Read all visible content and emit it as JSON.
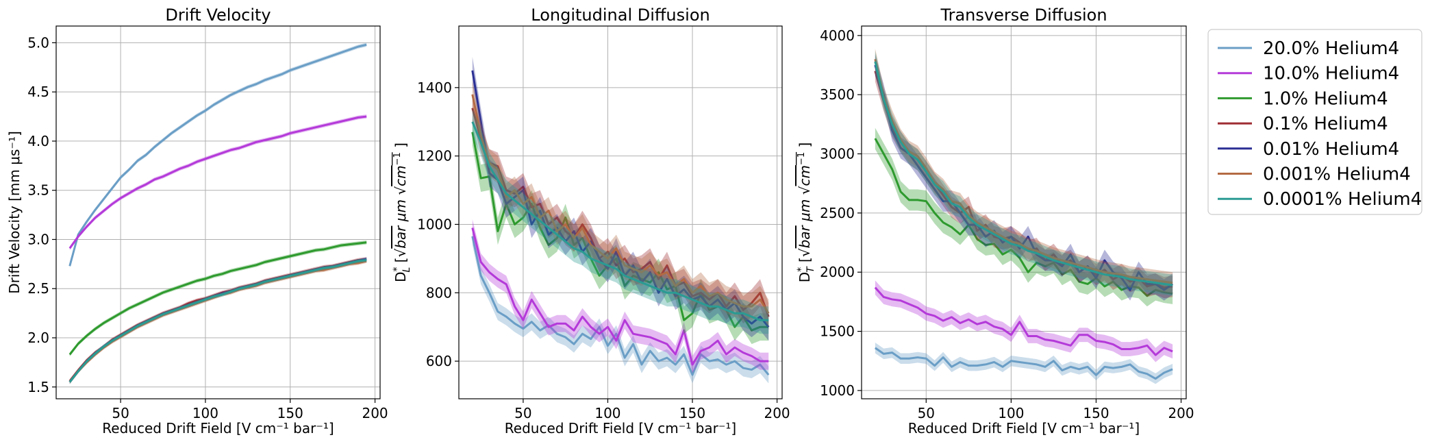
{
  "chart_data": [
    {
      "id": "drift",
      "type": "line",
      "title": "Drift Velocity",
      "xlabel": "Reduced Drift Field [V cm⁻¹ bar⁻¹]",
      "ylabel": "Drift Velocity [mm μs⁻¹]",
      "xlim": [
        12,
        203
      ],
      "ylim": [
        1.38,
        5.17
      ],
      "xticks": [
        50,
        100,
        150,
        200
      ],
      "yticks": [
        1.5,
        2.0,
        2.5,
        3.0,
        3.5,
        4.0,
        4.5,
        5.0
      ],
      "ytick_labels": [
        "1.5",
        "2.0",
        "2.5",
        "3.0",
        "3.5",
        "4.0",
        "4.5",
        "5.0"
      ],
      "grid": true,
      "x": [
        20,
        25,
        30,
        35,
        40,
        45,
        50,
        55,
        60,
        65,
        70,
        75,
        80,
        85,
        90,
        95,
        100,
        105,
        110,
        115,
        120,
        125,
        130,
        135,
        140,
        145,
        150,
        155,
        160,
        165,
        170,
        175,
        180,
        185,
        190,
        195
      ],
      "series": [
        {
          "name": "20.0% Helium4",
          "band": 0.02,
          "values": [
            2.73,
            3.05,
            3.18,
            3.3,
            3.41,
            3.52,
            3.63,
            3.71,
            3.8,
            3.86,
            3.94,
            4.01,
            4.08,
            4.14,
            4.2,
            4.26,
            4.31,
            4.37,
            4.42,
            4.47,
            4.51,
            4.55,
            4.58,
            4.62,
            4.65,
            4.68,
            4.72,
            4.75,
            4.78,
            4.81,
            4.84,
            4.87,
            4.9,
            4.93,
            4.96,
            4.98
          ]
        },
        {
          "name": "10.0% Helium4",
          "band": 0.02,
          "values": [
            2.91,
            3.03,
            3.13,
            3.22,
            3.29,
            3.36,
            3.42,
            3.47,
            3.52,
            3.56,
            3.61,
            3.64,
            3.68,
            3.72,
            3.75,
            3.79,
            3.82,
            3.85,
            3.88,
            3.91,
            3.93,
            3.96,
            3.99,
            4.01,
            4.03,
            4.05,
            4.08,
            4.1,
            4.12,
            4.14,
            4.16,
            4.18,
            4.2,
            4.22,
            4.24,
            4.25
          ]
        },
        {
          "name": "1.0% Helium4",
          "band": 0.02,
          "values": [
            1.83,
            1.94,
            2.02,
            2.09,
            2.15,
            2.2,
            2.25,
            2.3,
            2.34,
            2.38,
            2.42,
            2.46,
            2.49,
            2.52,
            2.55,
            2.58,
            2.6,
            2.63,
            2.65,
            2.68,
            2.7,
            2.72,
            2.74,
            2.77,
            2.79,
            2.81,
            2.83,
            2.85,
            2.87,
            2.89,
            2.9,
            2.92,
            2.94,
            2.95,
            2.96,
            2.97
          ]
        },
        {
          "name": "0.1% Helium4",
          "band": 0.02,
          "values": [
            1.56,
            1.67,
            1.77,
            1.85,
            1.91,
            1.98,
            2.03,
            2.08,
            2.13,
            2.17,
            2.21,
            2.25,
            2.28,
            2.31,
            2.35,
            2.38,
            2.4,
            2.43,
            2.46,
            2.48,
            2.51,
            2.53,
            2.55,
            2.58,
            2.6,
            2.62,
            2.64,
            2.66,
            2.68,
            2.7,
            2.72,
            2.73,
            2.75,
            2.77,
            2.79,
            2.8
          ]
        },
        {
          "name": "0.01% Helium4",
          "band": 0.02,
          "values": [
            1.55,
            1.66,
            1.76,
            1.84,
            1.91,
            1.97,
            2.02,
            2.07,
            2.12,
            2.16,
            2.2,
            2.24,
            2.27,
            2.3,
            2.33,
            2.36,
            2.39,
            2.42,
            2.45,
            2.47,
            2.5,
            2.52,
            2.54,
            2.57,
            2.59,
            2.61,
            2.63,
            2.65,
            2.67,
            2.69,
            2.71,
            2.72,
            2.74,
            2.76,
            2.78,
            2.8
          ]
        },
        {
          "name": "0.001% Helium4",
          "band": 0.02,
          "values": [
            1.55,
            1.66,
            1.75,
            1.83,
            1.9,
            1.96,
            2.01,
            2.06,
            2.11,
            2.15,
            2.19,
            2.23,
            2.26,
            2.29,
            2.32,
            2.35,
            2.38,
            2.41,
            2.44,
            2.46,
            2.49,
            2.51,
            2.53,
            2.56,
            2.58,
            2.6,
            2.62,
            2.64,
            2.66,
            2.68,
            2.69,
            2.71,
            2.73,
            2.75,
            2.76,
            2.78
          ]
        },
        {
          "name": "0.0001% Helium4",
          "band": 0.02,
          "values": [
            1.55,
            1.66,
            1.76,
            1.84,
            1.91,
            1.97,
            2.02,
            2.07,
            2.12,
            2.16,
            2.2,
            2.24,
            2.27,
            2.3,
            2.33,
            2.36,
            2.39,
            2.42,
            2.44,
            2.47,
            2.5,
            2.52,
            2.54,
            2.57,
            2.59,
            2.61,
            2.63,
            2.65,
            2.67,
            2.69,
            2.71,
            2.72,
            2.74,
            2.76,
            2.78,
            2.79
          ]
        }
      ]
    },
    {
      "id": "long",
      "type": "line",
      "title": "Longitudinal Diffusion",
      "xlabel": "Reduced Drift Field [V cm⁻¹ bar⁻¹]",
      "ylabel": "D*L [√bar μm √cm⁻¹]",
      "xlim": [
        12,
        203
      ],
      "ylim": [
        490,
        1580
      ],
      "xticks": [
        50,
        100,
        150,
        200
      ],
      "yticks": [
        600,
        800,
        1000,
        1200,
        1400
      ],
      "ytick_labels": [
        "600",
        "800",
        "1000",
        "1200",
        "1400"
      ],
      "grid": true,
      "x": [
        20,
        25,
        30,
        35,
        40,
        45,
        50,
        55,
        60,
        65,
        70,
        75,
        80,
        85,
        90,
        95,
        100,
        105,
        110,
        115,
        120,
        125,
        130,
        135,
        140,
        145,
        150,
        155,
        160,
        165,
        170,
        175,
        180,
        185,
        190,
        195
      ],
      "series": [
        {
          "name": "20.0% Helium4",
          "band": 25,
          "values": [
            965,
            850,
            800,
            745,
            730,
            710,
            695,
            715,
            690,
            705,
            680,
            670,
            650,
            680,
            665,
            700,
            645,
            680,
            610,
            650,
            590,
            630,
            600,
            610,
            590,
            620,
            560,
            620,
            600,
            605,
            590,
            600,
            580,
            575,
            590,
            560
          ]
        },
        {
          "name": "10.0% Helium4",
          "band": 25,
          "values": [
            990,
            890,
            860,
            840,
            825,
            760,
            720,
            780,
            740,
            700,
            710,
            710,
            690,
            730,
            700,
            680,
            700,
            660,
            720,
            680,
            675,
            670,
            660,
            650,
            620,
            690,
            590,
            630,
            640,
            660,
            620,
            640,
            625,
            615,
            600,
            600
          ]
        },
        {
          "name": "1.0% Helium4",
          "band": 40,
          "values": [
            1270,
            1135,
            1140,
            980,
            1060,
            1000,
            1020,
            1060,
            990,
            940,
            960,
            1020,
            940,
            960,
            900,
            850,
            880,
            900,
            820,
            850,
            840,
            830,
            860,
            810,
            820,
            720,
            740,
            800,
            750,
            760,
            750,
            700,
            730,
            690,
            700,
            700
          ]
        },
        {
          "name": "0.1% Helium4",
          "band": 40,
          "values": [
            1340,
            1250,
            1180,
            1170,
            1100,
            1090,
            1110,
            1050,
            1060,
            1000,
            1020,
            980,
            960,
            1000,
            960,
            900,
            920,
            880,
            900,
            860,
            870,
            890,
            840,
            880,
            820,
            830,
            790,
            800,
            780,
            800,
            760,
            790,
            750,
            770,
            800,
            730
          ]
        },
        {
          "name": "0.01% Helium4",
          "band": 40,
          "values": [
            1450,
            1300,
            1150,
            1130,
            1060,
            1080,
            1100,
            1000,
            1040,
            970,
            990,
            950,
            980,
            920,
            950,
            900,
            870,
            920,
            850,
            880,
            830,
            860,
            800,
            840,
            790,
            810,
            780,
            790,
            760,
            780,
            750,
            770,
            730,
            710,
            730,
            700
          ]
        },
        {
          "name": "0.001% Helium4",
          "band": 40,
          "values": [
            1380,
            1260,
            1180,
            1160,
            1080,
            1100,
            1060,
            1080,
            1020,
            1040,
            980,
            1000,
            960,
            990,
            940,
            920,
            900,
            930,
            880,
            870,
            860,
            880,
            850,
            860,
            820,
            840,
            800,
            820,
            790,
            800,
            780,
            770,
            760,
            760,
            780,
            740
          ]
        },
        {
          "name": "0.0001% Helium4",
          "band": 40,
          "values": [
            1300,
            1240,
            1170,
            1130,
            1090,
            1070,
            1050,
            1030,
            1010,
            990,
            970,
            950,
            930,
            920,
            900,
            890,
            880,
            870,
            850,
            840,
            830,
            820,
            810,
            800,
            800,
            790,
            780,
            770,
            760,
            760,
            750,
            740,
            740,
            730,
            720,
            720
          ]
        }
      ]
    },
    {
      "id": "trans",
      "type": "line",
      "title": "Transverse Diffusion",
      "xlabel": "Reduced Drift Field [V cm⁻¹ bar⁻¹]",
      "ylabel": "D*T [√bar μm √cm⁻¹]",
      "xlim": [
        12,
        203
      ],
      "ylim": [
        930,
        4080
      ],
      "xticks": [
        50,
        100,
        150,
        200
      ],
      "yticks": [
        1000,
        1500,
        2000,
        2500,
        3000,
        3500,
        4000
      ],
      "ytick_labels": [
        "1000",
        "1500",
        "2000",
        "2500",
        "3000",
        "3500",
        "4000"
      ],
      "grid": true,
      "x": [
        20,
        25,
        30,
        35,
        40,
        45,
        50,
        55,
        60,
        65,
        70,
        75,
        80,
        85,
        90,
        95,
        100,
        105,
        110,
        115,
        120,
        125,
        130,
        135,
        140,
        145,
        150,
        155,
        160,
        165,
        170,
        175,
        180,
        185,
        190,
        195
      ],
      "series": [
        {
          "name": "20.0% Helium4",
          "band": 45,
          "values": [
            1360,
            1310,
            1320,
            1270,
            1270,
            1280,
            1270,
            1210,
            1280,
            1200,
            1240,
            1210,
            1210,
            1220,
            1240,
            1200,
            1250,
            1240,
            1230,
            1220,
            1200,
            1250,
            1170,
            1200,
            1180,
            1200,
            1130,
            1200,
            1190,
            1200,
            1220,
            1160,
            1140,
            1100,
            1150,
            1180
          ]
        },
        {
          "name": "10.0% Helium4",
          "band": 60,
          "values": [
            1870,
            1790,
            1770,
            1760,
            1730,
            1700,
            1650,
            1630,
            1590,
            1620,
            1570,
            1600,
            1560,
            1580,
            1540,
            1520,
            1470,
            1580,
            1460,
            1460,
            1430,
            1420,
            1400,
            1380,
            1470,
            1470,
            1420,
            1410,
            1390,
            1350,
            1350,
            1360,
            1380,
            1300,
            1360,
            1330
          ]
        },
        {
          "name": "1.0% Helium4",
          "band": 90,
          "values": [
            3130,
            3000,
            2870,
            2680,
            2610,
            2610,
            2600,
            2500,
            2420,
            2380,
            2320,
            2400,
            2280,
            2230,
            2240,
            2150,
            2190,
            2120,
            2000,
            2080,
            2050,
            2080,
            1980,
            2020,
            1920,
            1900,
            1950,
            1880,
            1920,
            1850,
            1880,
            1870,
            1800,
            1850,
            1830,
            1820
          ]
        },
        {
          "name": "0.1% Helium4",
          "band": 90,
          "values": [
            3700,
            3450,
            3230,
            3100,
            3000,
            2950,
            2850,
            2750,
            2650,
            2550,
            2500,
            2550,
            2350,
            2400,
            2300,
            2280,
            2300,
            2250,
            2180,
            2200,
            2100,
            2150,
            2060,
            2100,
            2000,
            2050,
            1980,
            2020,
            1940,
            1980,
            1920,
            1950,
            1880,
            1900,
            1870,
            1880
          ]
        },
        {
          "name": "0.01% Helium4",
          "band": 90,
          "values": [
            3750,
            3500,
            3200,
            3050,
            3000,
            2900,
            2800,
            2700,
            2600,
            2600,
            2500,
            2400,
            2400,
            2300,
            2350,
            2250,
            2300,
            2200,
            2300,
            2150,
            2100,
            2100,
            2050,
            2150,
            2000,
            2050,
            1950,
            2100,
            2000,
            1950,
            1850,
            2000,
            1900,
            1900,
            1850,
            1900
          ]
        },
        {
          "name": "0.001% Helium4",
          "band": 90,
          "values": [
            3800,
            3480,
            3280,
            3120,
            3020,
            2980,
            2880,
            2760,
            2700,
            2600,
            2580,
            2480,
            2420,
            2380,
            2340,
            2300,
            2260,
            2240,
            2200,
            2180,
            2150,
            2120,
            2100,
            2080,
            2060,
            2040,
            2020,
            2000,
            1990,
            1980,
            1960,
            1950,
            1940,
            1930,
            1920,
            1910
          ]
        },
        {
          "name": "0.0001% Helium4",
          "band": 90,
          "values": [
            3780,
            3460,
            3250,
            3100,
            3000,
            2950,
            2850,
            2740,
            2680,
            2580,
            2550,
            2460,
            2400,
            2360,
            2320,
            2280,
            2240,
            2220,
            2180,
            2160,
            2130,
            2100,
            2080,
            2060,
            2040,
            2020,
            2000,
            1980,
            1970,
            1960,
            1940,
            1930,
            1920,
            1910,
            1900,
            1890
          ]
        }
      ]
    }
  ],
  "legend": {
    "placement": "upper-right outside",
    "entries": [
      {
        "label": "20.0% Helium4",
        "color": "#6a9ec6"
      },
      {
        "label": "10.0% Helium4",
        "color": "#b43ad9"
      },
      {
        "label": "1.0% Helium4",
        "color": "#2e9a2e"
      },
      {
        "label": "0.1% Helium4",
        "color": "#9e2b32"
      },
      {
        "label": "0.01% Helium4",
        "color": "#2b2f93"
      },
      {
        "label": "0.001% Helium4",
        "color": "#b36a43"
      },
      {
        "label": "0.0001% Helium4",
        "color": "#2a9b93"
      }
    ]
  }
}
